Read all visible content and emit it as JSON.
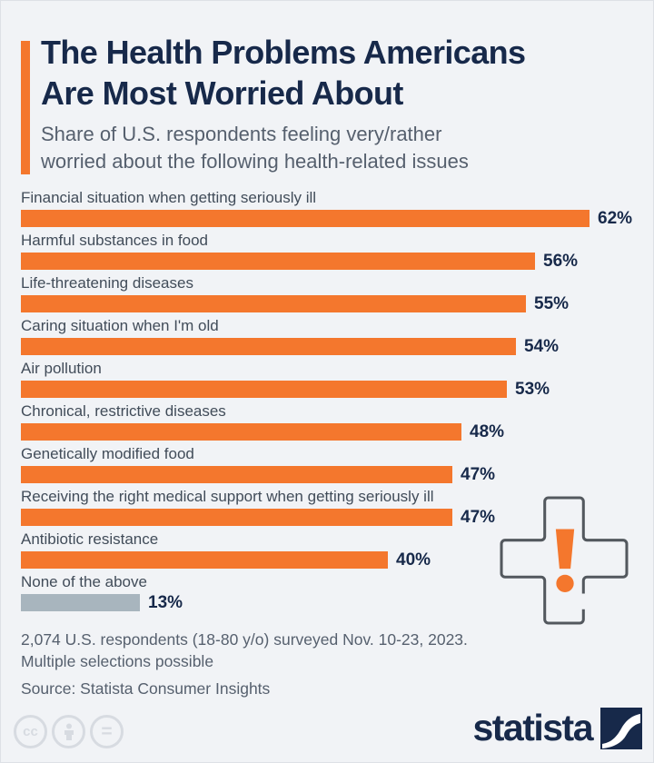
{
  "colors": {
    "accent": "#f4772d",
    "navy": "#17294a",
    "muted_bar": "#a8b5be",
    "background": "#f1f3f6",
    "text_gray": "#56606e",
    "label_gray": "#414c59",
    "icon_outline": "#53585e",
    "license_gray": "#d7dbe1"
  },
  "header": {
    "title_lines": [
      "The Health Problems Americans",
      "Are Most Worried About"
    ],
    "subtitle_lines": [
      "Share of U.S. respondents feeling very/rather",
      "worried about the following health-related issues"
    ]
  },
  "chart_data": {
    "type": "bar",
    "orientation": "horizontal",
    "categories": [
      "Financial situation when getting seriously ill",
      "Harmful substances in food",
      "Life-threatening diseases",
      "Caring situation when I'm old",
      "Air pollution",
      "Chronical, restrictive diseases",
      "Genetically modified food",
      "Receiving the right medical support when getting seriously ill",
      "Antibiotic resistance",
      "None of the above"
    ],
    "values": [
      62,
      56,
      55,
      54,
      53,
      48,
      47,
      47,
      40,
      13
    ],
    "value_labels": [
      "62%",
      "56%",
      "55%",
      "54%",
      "53%",
      "48%",
      "47%",
      "47%",
      "40%",
      "13%"
    ],
    "bar_color": "#f4772d",
    "muted_bar_color": "#a8b5be",
    "muted_categories": [
      "None of the above"
    ],
    "xlim": [
      0,
      65
    ],
    "grid": false,
    "legend": false,
    "value_label_position": "end-of-bar"
  },
  "annotation_icon": {
    "name": "medical-cross-exclamation-icon",
    "outline_color": "#53585e",
    "exclamation_color": "#f4772d"
  },
  "footnote": {
    "lines": [
      "2,074 U.S. respondents (18-80 y/o) surveyed Nov. 10-23, 2023.",
      "Multiple selections possible"
    ],
    "source": "Source: Statista Consumer Insights"
  },
  "footer": {
    "license_icons": [
      {
        "name": "cc-icon",
        "glyph": "cc"
      },
      {
        "name": "attribution-person-icon",
        "glyph": "person"
      },
      {
        "name": "nd-equals-icon",
        "glyph": "="
      }
    ],
    "brand": {
      "logo_text": "statista"
    }
  }
}
